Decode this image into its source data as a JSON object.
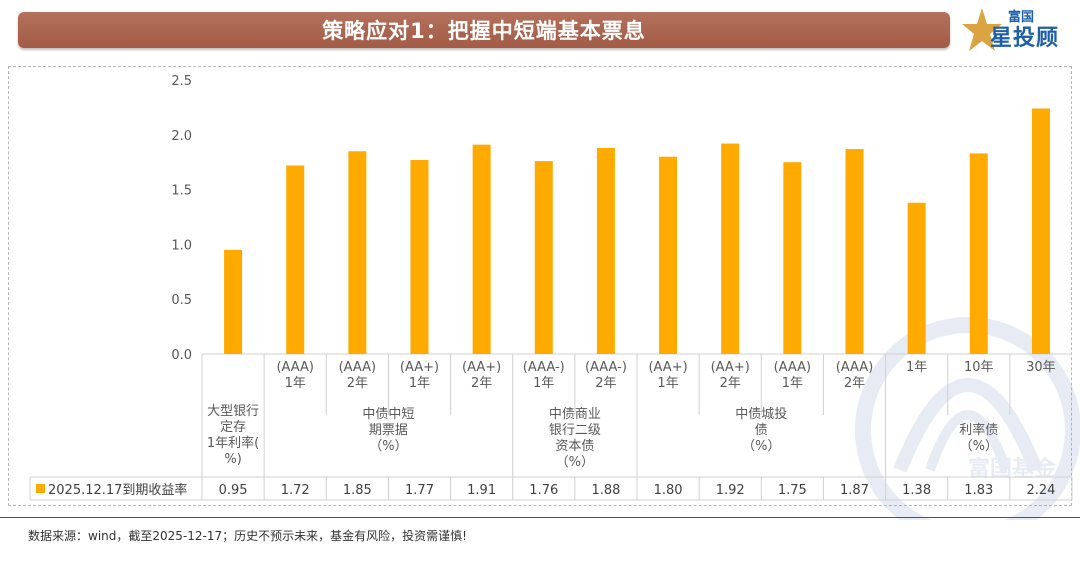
{
  "header": {
    "title": "策略应对1：把握中短端基本票息",
    "logo_small": "富国",
    "logo_big": "星投顾",
    "watermark_text": "富国基金"
  },
  "colors": {
    "bar": "#ffaa00",
    "title_bg": "#a96450",
    "accent_blue": "#1e5fa8",
    "grid_line": "#d0d0d0"
  },
  "chart_data": {
    "type": "bar",
    "title": "",
    "ylim": [
      0,
      2.5
    ],
    "yticks": [
      "0.0",
      "0.5",
      "1.0",
      "1.5",
      "2.0",
      "2.5"
    ],
    "categories": [
      {
        "sub": "",
        "label": "大型银行定存1年利率(%)"
      },
      {
        "sub": "(AAA)1年"
      },
      {
        "sub": "(AAA)2年"
      },
      {
        "sub": "(AA+)1年"
      },
      {
        "sub": "(AA+)2年"
      },
      {
        "sub": "(AAA-)1年"
      },
      {
        "sub": "(AAA-)2年"
      },
      {
        "sub": "(AA+)1年"
      },
      {
        "sub": "(AA+)2年"
      },
      {
        "sub": "(AAA)1年"
      },
      {
        "sub": "(AAA)2年"
      },
      {
        "sub": "1年"
      },
      {
        "sub": "10年"
      },
      {
        "sub": "30年"
      }
    ],
    "sub_lines": [
      [
        "",
        ""
      ],
      [
        "(AAA)",
        "1年"
      ],
      [
        "(AAA)",
        "2年"
      ],
      [
        "(AA+)",
        "1年"
      ],
      [
        "(AA+)",
        "2年"
      ],
      [
        "(AAA-)",
        "1年"
      ],
      [
        "(AAA-)",
        "2年"
      ],
      [
        "(AA+)",
        "1年"
      ],
      [
        "(AA+)",
        "2年"
      ],
      [
        "(AAA)",
        "1年"
      ],
      [
        "(AAA)",
        "2年"
      ],
      [
        "1年",
        ""
      ],
      [
        "10年",
        ""
      ],
      [
        "30年",
        ""
      ]
    ],
    "groups": [
      {
        "start": 0,
        "end": 0,
        "lines": [
          "大型银行",
          "定存",
          "1年利率(",
          "%)"
        ]
      },
      {
        "start": 1,
        "end": 4,
        "lines": [
          "中债中短",
          "期票据",
          "（%）"
        ]
      },
      {
        "start": 5,
        "end": 6,
        "lines": [
          "中债商业",
          "银行二级",
          "资本债",
          "（%）"
        ]
      },
      {
        "start": 7,
        "end": 10,
        "lines": [
          "中债城投",
          "债",
          "（%）"
        ]
      },
      {
        "start": 11,
        "end": 13,
        "lines": [
          "利率债",
          "（%）"
        ]
      }
    ],
    "series": [
      {
        "name": "2025.12.17到期收益率",
        "values": [
          0.95,
          1.72,
          1.85,
          1.77,
          1.91,
          1.76,
          1.88,
          1.8,
          1.92,
          1.75,
          1.87,
          1.38,
          1.83,
          2.24
        ],
        "value_labels": [
          "0.95",
          "1.72",
          "1.85",
          "1.77",
          "1.91",
          "1.76",
          "1.88",
          "1.80",
          "1.92",
          "1.75",
          "1.87",
          "1.38",
          "1.83",
          "2.24"
        ]
      }
    ]
  },
  "footer": {
    "source": "数据来源：wind，截至2025-12-17；历史不预示未来，基金有风险，投资需谨慎!"
  }
}
